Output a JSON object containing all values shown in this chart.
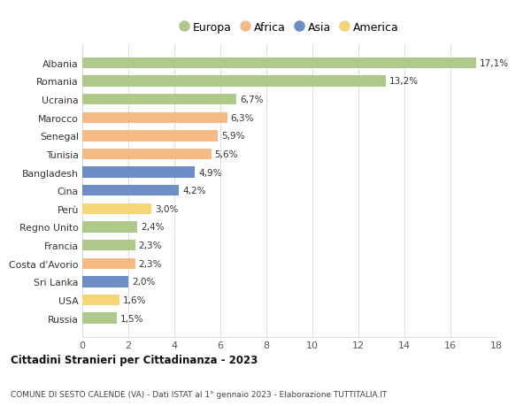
{
  "countries": [
    "Albania",
    "Romania",
    "Ucraina",
    "Marocco",
    "Senegal",
    "Tunisia",
    "Bangladesh",
    "Cina",
    "Perù",
    "Regno Unito",
    "Francia",
    "Costa d'Avorio",
    "Sri Lanka",
    "USA",
    "Russia"
  ],
  "values": [
    17.1,
    13.2,
    6.7,
    6.3,
    5.9,
    5.6,
    4.9,
    4.2,
    3.0,
    2.4,
    2.3,
    2.3,
    2.0,
    1.6,
    1.5
  ],
  "labels": [
    "17,1%",
    "13,2%",
    "6,7%",
    "6,3%",
    "5,9%",
    "5,6%",
    "4,9%",
    "4,2%",
    "3,0%",
    "2,4%",
    "2,3%",
    "2,3%",
    "2,0%",
    "1,6%",
    "1,5%"
  ],
  "continents": [
    "Europa",
    "Europa",
    "Europa",
    "Africa",
    "Africa",
    "Africa",
    "Asia",
    "Asia",
    "America",
    "Europa",
    "Europa",
    "Africa",
    "Asia",
    "America",
    "Europa"
  ],
  "colors": {
    "Europa": "#aec98a",
    "Africa": "#f5bb85",
    "Asia": "#6b8ec7",
    "America": "#f5d576"
  },
  "legend_order": [
    "Europa",
    "Africa",
    "Asia",
    "America"
  ],
  "xlim": [
    0,
    18
  ],
  "xticks": [
    0,
    2,
    4,
    6,
    8,
    10,
    12,
    14,
    16,
    18
  ],
  "title": "Cittadini Stranieri per Cittadinanza - 2023",
  "subtitle": "COMUNE DI SESTO CALENDE (VA) - Dati ISTAT al 1° gennaio 2023 - Elaborazione TUTTITALIA.IT",
  "bg_color": "#ffffff",
  "grid_color": "#dddddd",
  "bar_height": 0.6
}
